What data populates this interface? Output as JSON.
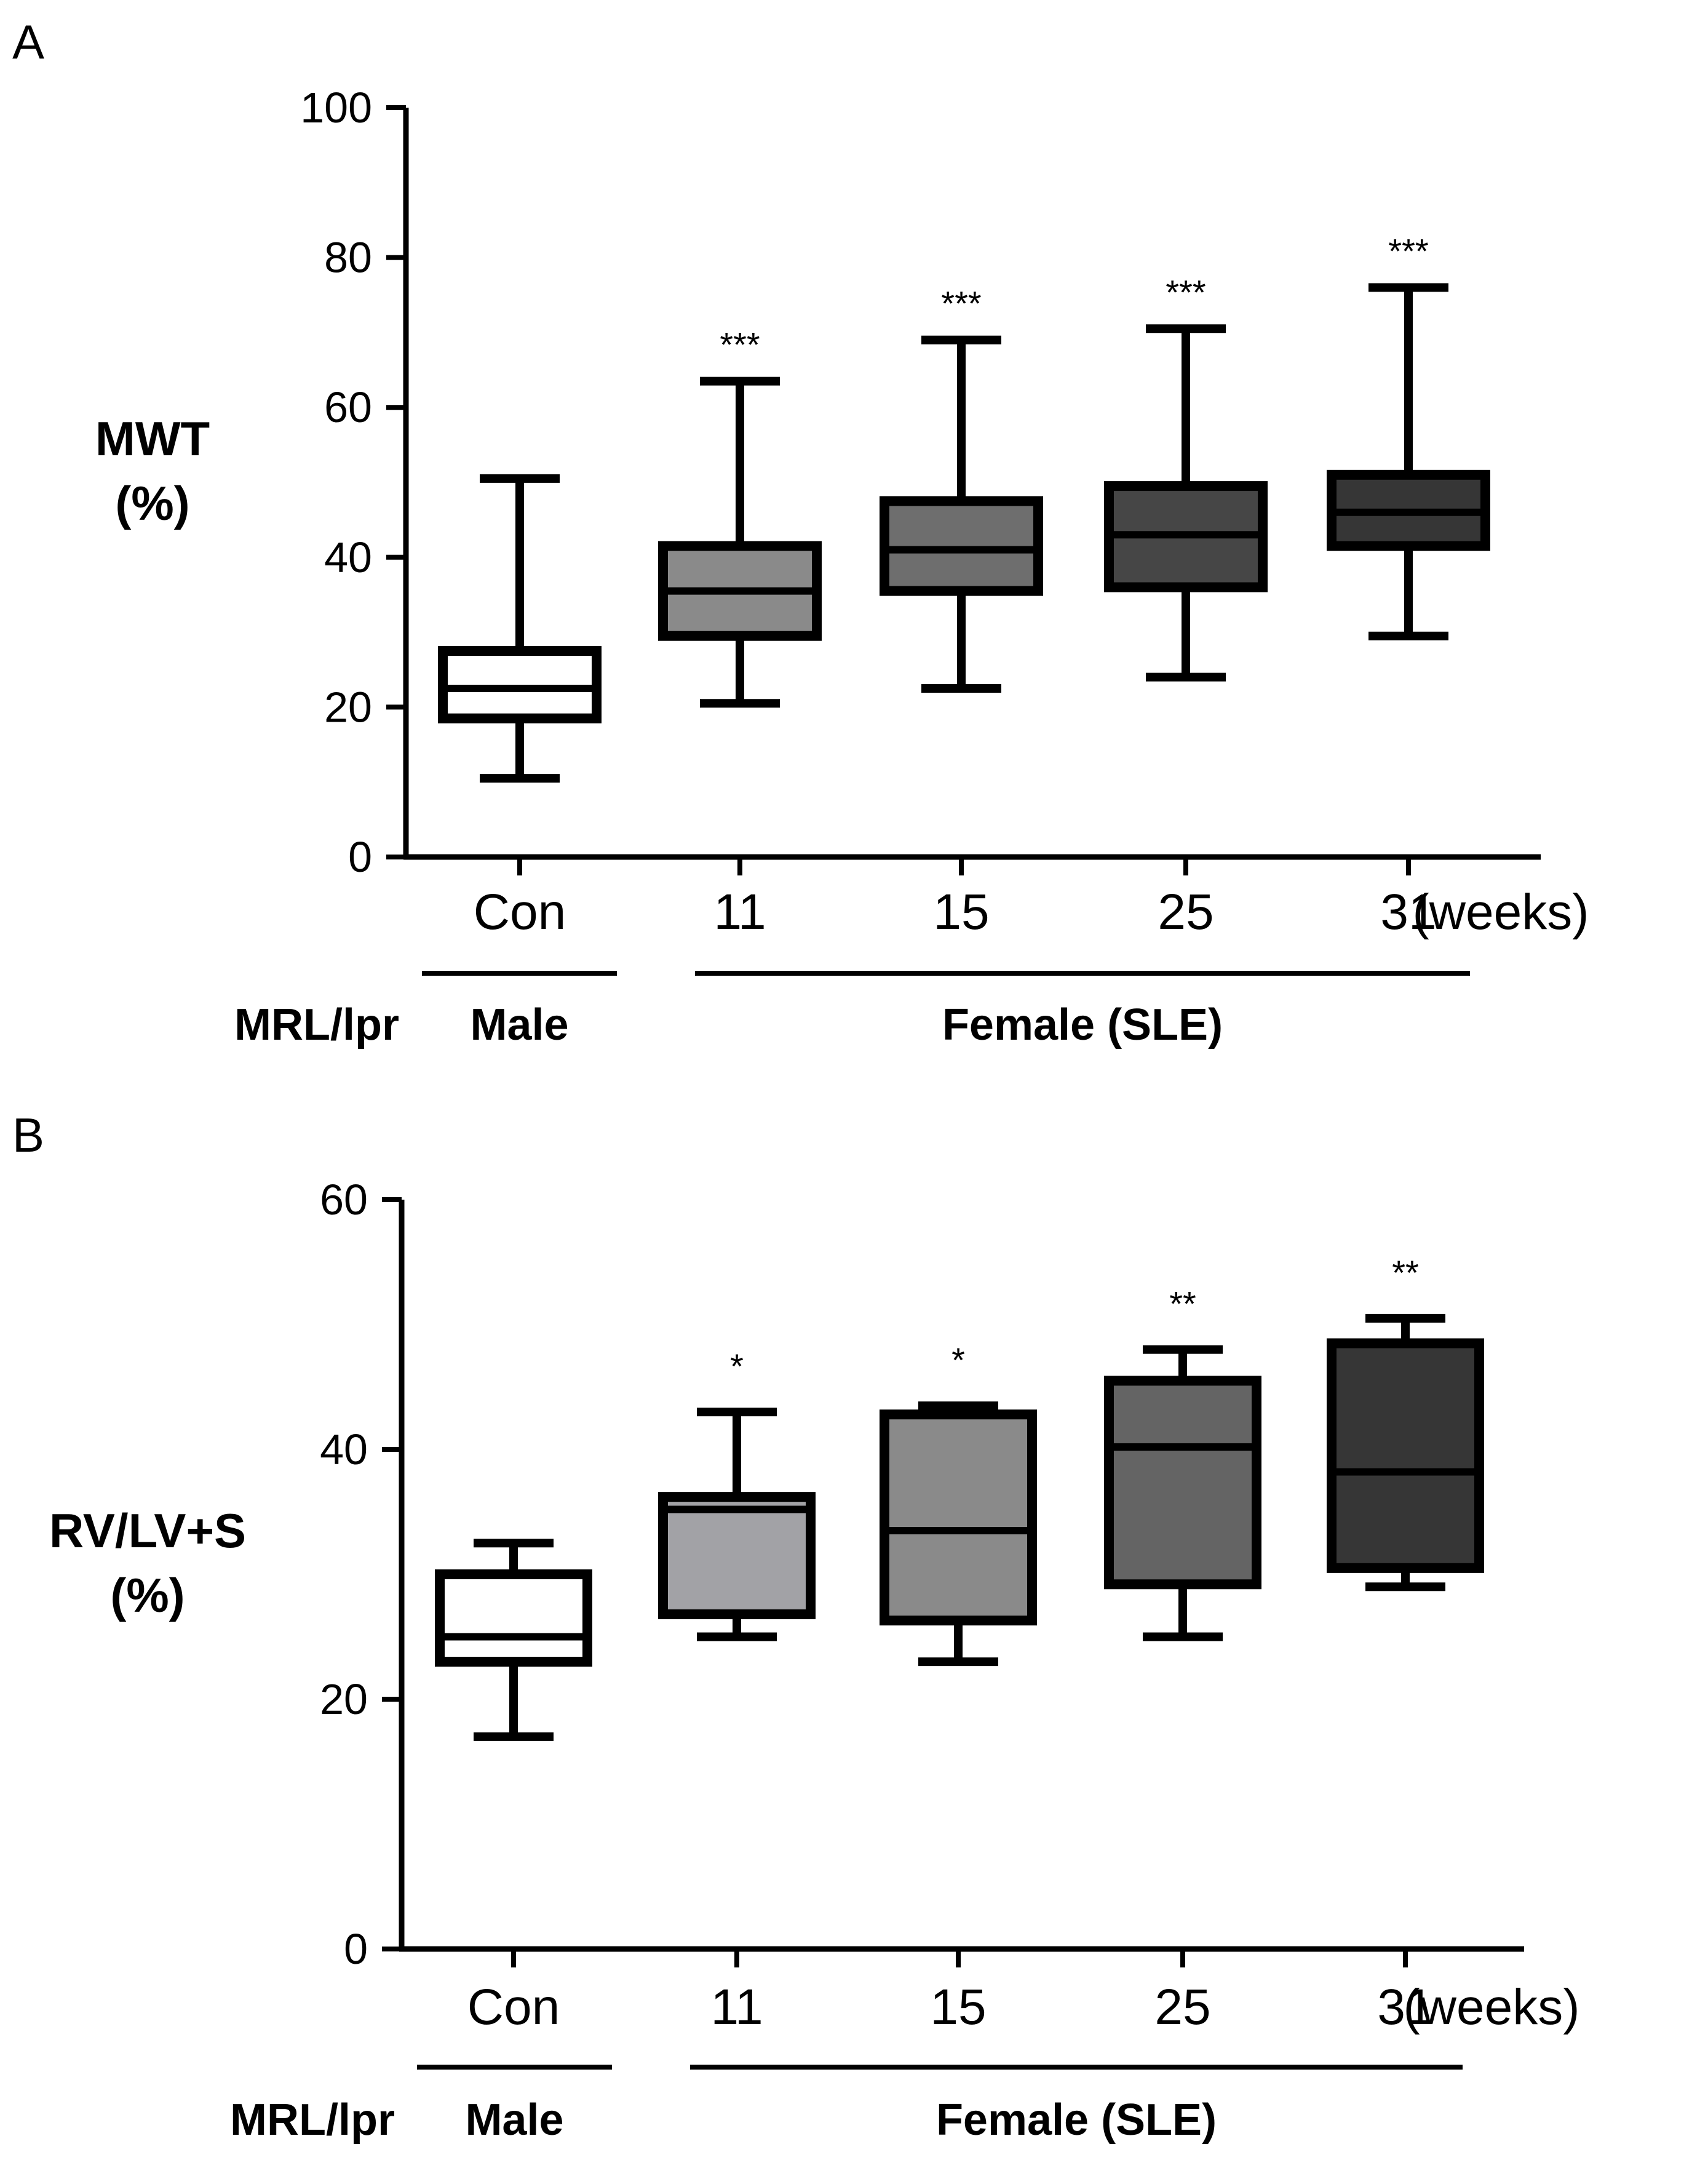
{
  "chart_data": [
    {
      "panel": "A",
      "type": "box",
      "ylabel_lines": [
        "MWT",
        "(%)"
      ],
      "ylim": [
        0,
        100
      ],
      "yticks": [
        0,
        20,
        40,
        60,
        80,
        100
      ],
      "categories": [
        "Con",
        "11",
        "15",
        "25",
        "31"
      ],
      "x_unit": "(weeks)",
      "strain_label": "MRL/lpr",
      "groups": [
        {
          "label": "Male",
          "from": 0,
          "to": 0
        },
        {
          "label": "Female (SLE)",
          "from": 1,
          "to": 4
        }
      ],
      "boxes": [
        {
          "category": "Con",
          "min": 10.5,
          "q1": 18.5,
          "median": 22.5,
          "q3": 27.5,
          "max": 50.5,
          "fill": "#ffffff",
          "sig": ""
        },
        {
          "category": "11",
          "min": 20.5,
          "q1": 29.5,
          "median": 35.5,
          "q3": 41.5,
          "max": 63.5,
          "fill": "#8a8a8a",
          "sig": "***"
        },
        {
          "category": "15",
          "min": 22.5,
          "q1": 35.5,
          "median": 41,
          "q3": 47.5,
          "max": 69,
          "fill": "#6e6e6e",
          "sig": "***"
        },
        {
          "category": "25",
          "min": 24,
          "q1": 36,
          "median": 43,
          "q3": 49.5,
          "max": 70.5,
          "fill": "#464646",
          "sig": "***"
        },
        {
          "category": "31",
          "min": 29.5,
          "q1": 41.5,
          "median": 46,
          "q3": 51,
          "max": 76,
          "fill": "#363636",
          "sig": "***"
        }
      ]
    },
    {
      "panel": "B",
      "type": "box",
      "ylabel_lines": [
        "RV/LV+S",
        "(%)"
      ],
      "ylim": [
        0,
        60
      ],
      "yticks": [
        0,
        20,
        40,
        60
      ],
      "categories": [
        "Con",
        "11",
        "15",
        "25",
        "31"
      ],
      "x_unit": "(weeks)",
      "strain_label": "MRL/lpr",
      "groups": [
        {
          "label": "Male",
          "from": 0,
          "to": 0
        },
        {
          "label": "Female (SLE)",
          "from": 1,
          "to": 4
        }
      ],
      "boxes": [
        {
          "category": "Con",
          "min": 17,
          "q1": 23,
          "median": 25,
          "q3": 30,
          "max": 32.5,
          "fill": "#ffffff",
          "sig": ""
        },
        {
          "category": "11",
          "min": 25,
          "q1": 26.8,
          "median": 35.2,
          "q3": 36.2,
          "max": 43,
          "fill": "#a2a2a6",
          "sig": "*"
        },
        {
          "category": "15",
          "min": 23,
          "q1": 26.3,
          "median": 33.5,
          "q3": 42.8,
          "max": 43.5,
          "fill": "#8a8a8a",
          "sig": "*"
        },
        {
          "category": "25",
          "min": 25,
          "q1": 29.2,
          "median": 40.2,
          "q3": 45.5,
          "max": 48,
          "fill": "#646464",
          "sig": "**"
        },
        {
          "category": "31",
          "min": 29,
          "q1": 30.5,
          "median": 38.2,
          "q3": 48.5,
          "max": 50.5,
          "fill": "#363636",
          "sig": "**"
        }
      ]
    }
  ]
}
